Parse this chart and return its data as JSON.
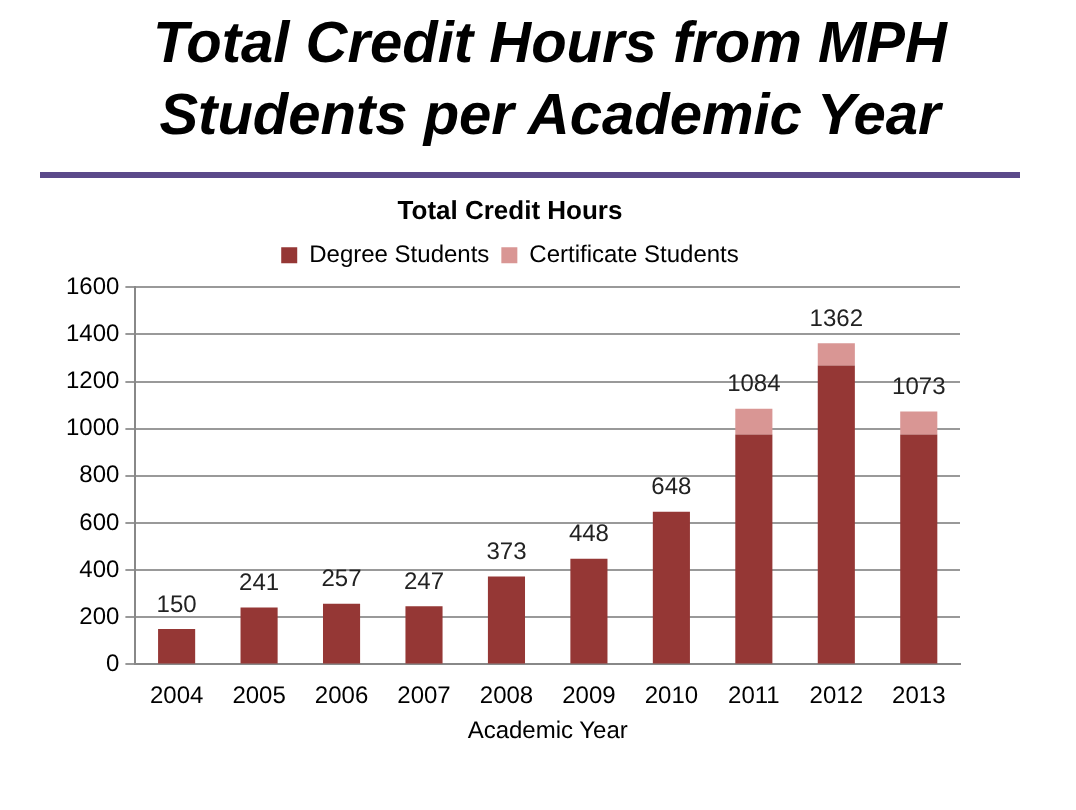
{
  "chart_data": {
    "type": "bar",
    "title": "Total Credit Hours from MPH Students per Academic Year",
    "subtitle": "Total Credit Hours",
    "xlabel": "Academic Year",
    "categories": [
      "2004",
      "2005",
      "2006",
      "2007",
      "2008",
      "2009",
      "2010",
      "2011",
      "2012",
      "2013"
    ],
    "series": [
      {
        "name": "Degree Students",
        "color": "#953735",
        "values": [
          150,
          241,
          257,
          247,
          373,
          448,
          648,
          975,
          1268,
          975
        ]
      },
      {
        "name": "Certificate Students",
        "color": "#d99694",
        "values": [
          0,
          0,
          0,
          0,
          0,
          0,
          0,
          109,
          94,
          98
        ]
      }
    ],
    "stacked": true,
    "totals": [
      "150",
      "241",
      "257",
      "247",
      "373",
      "448",
      "648",
      "1084",
      "1362",
      "1073"
    ],
    "ylim": [
      0,
      1600
    ],
    "yticks": [
      0,
      200,
      400,
      600,
      800,
      1000,
      1200,
      1400,
      1600
    ],
    "grid": "y",
    "legend": "top"
  }
}
